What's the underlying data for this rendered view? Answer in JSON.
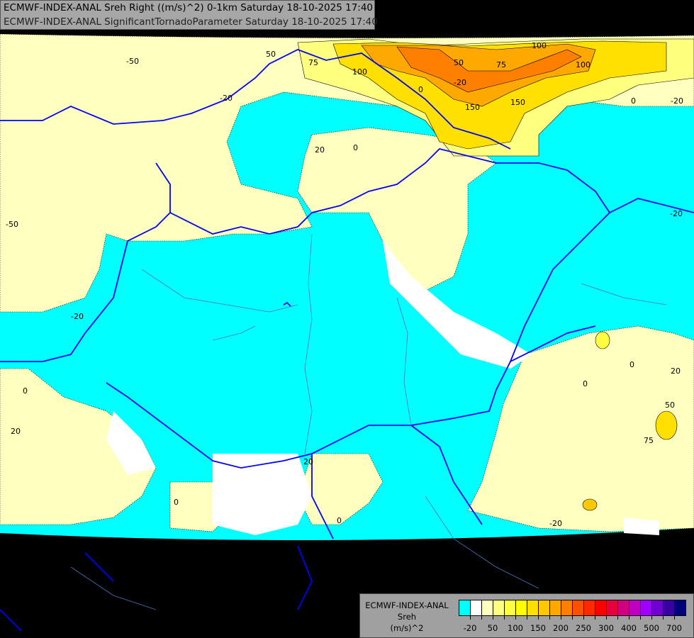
{
  "header": {
    "line1": "ECMWF-INDEX-ANAL Sreh Right ((m/s)^2) 0-1km Saturday 18-10-2025 17:40",
    "line2": "ECMWF-INDEX-ANAL SignificantTornadoParameter Saturday 18-10-2025 17:40"
  },
  "legend": {
    "model": "ECMWF-INDEX-ANAL",
    "variable": "Sreh",
    "unit": "(m/s)^2",
    "colors": [
      "#00ffff",
      "#ffffff",
      "#ffffc0",
      "#ffff80",
      "#ffff40",
      "#ffff00",
      "#ffe000",
      "#ffc800",
      "#ffa800",
      "#ff8000",
      "#ff5000",
      "#ff2800",
      "#ff0000",
      "#e8003c",
      "#d00080",
      "#c000c0",
      "#a000ff",
      "#7000d0",
      "#3800a0",
      "#000078"
    ],
    "labels": [
      "-20",
      "50",
      "100",
      "150",
      "200",
      "250",
      "300",
      "400",
      "500",
      "700"
    ]
  },
  "contour_labels": [
    "-50",
    "50",
    "75",
    "100",
    "-20",
    "20",
    "0",
    "-20",
    "100",
    "50",
    "75",
    "150",
    "150",
    "100",
    "0",
    "-20",
    "-20",
    "-50",
    "20",
    "-20",
    "0",
    "20",
    "0",
    "0",
    "20",
    "50",
    "75",
    "0",
    "-20",
    "0",
    "0"
  ],
  "colors": {
    "background": "#000000",
    "border": "#0000ff",
    "river": "#6080c0",
    "ocean": "#00ffff"
  }
}
